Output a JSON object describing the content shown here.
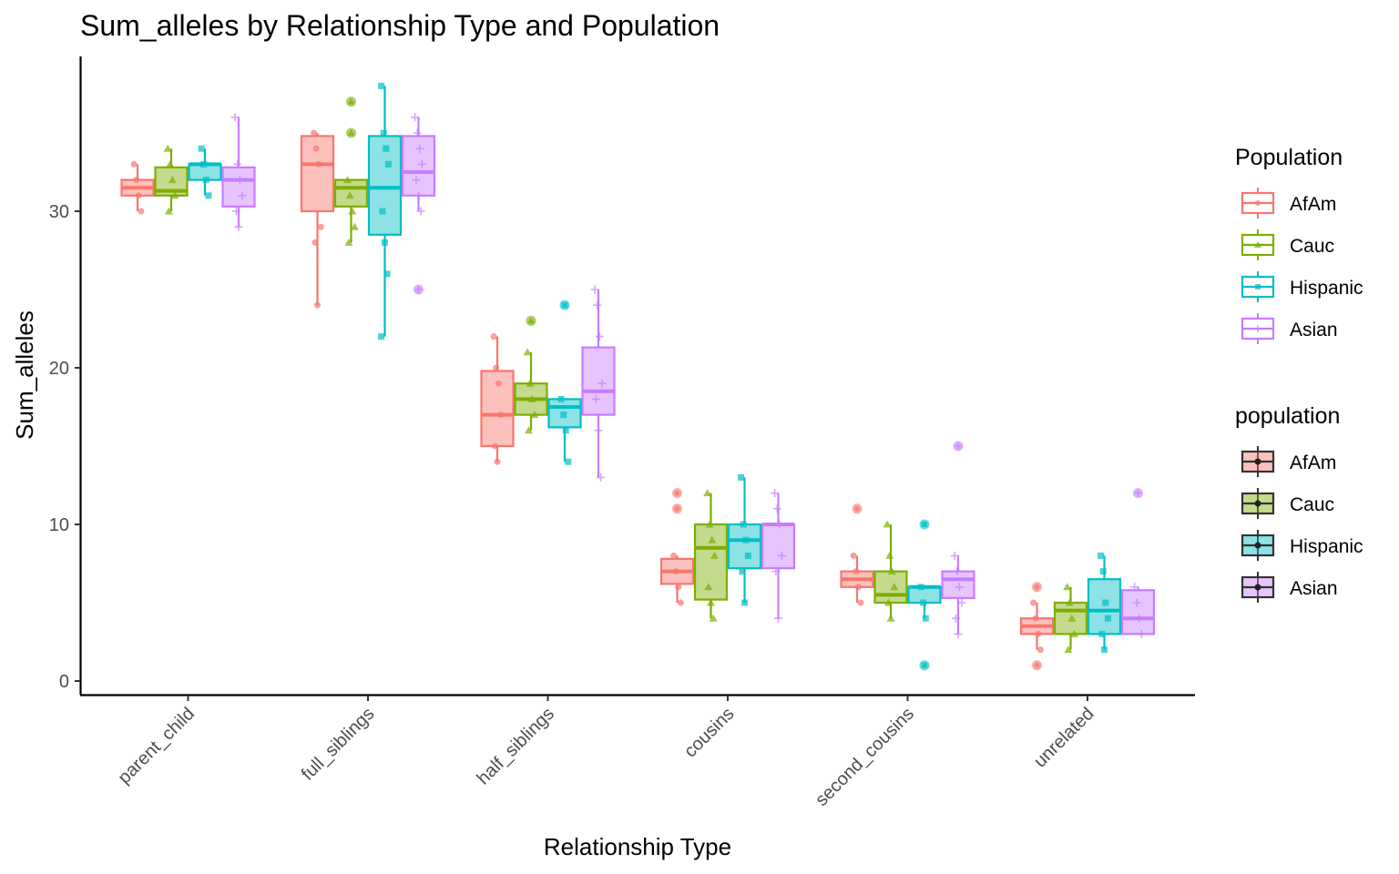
{
  "chart_data": {
    "type": "box",
    "title": "Sum_alleles by Relationship Type and Population",
    "xlabel": "Relationship Type",
    "ylabel": "Sum_alleles",
    "ylim": [
      -0.8,
      39.8
    ],
    "yticks": [
      0,
      10,
      20,
      30
    ],
    "ytick_labels": [
      "0",
      "10",
      "20",
      "30"
    ],
    "grid": false,
    "categories": [
      "parent_child",
      "full_siblings",
      "half_siblings",
      "cousins",
      "second_cousins",
      "unrelated"
    ],
    "populations": [
      "AfAm",
      "Cauc",
      "Hispanic",
      "Asian"
    ],
    "colors": {
      "AfAm": "#F8766D",
      "Cauc": "#7CAE00",
      "Hispanic": "#00BFC4",
      "Asian": "#C77CFF"
    },
    "boxes": {
      "parent_child": [
        {
          "pop": "AfAm",
          "q1": 31,
          "median": 31.5,
          "q3": 32,
          "lo": 30,
          "hi": 33,
          "points": [
            33,
            32,
            31,
            30
          ],
          "outliers": []
        },
        {
          "pop": "Cauc",
          "q1": 31,
          "median": 31.3,
          "q3": 32.8,
          "lo": 30,
          "hi": 34,
          "points": [
            34,
            33,
            32,
            31,
            30
          ],
          "outliers": []
        },
        {
          "pop": "Hispanic",
          "q1": 32,
          "median": 33,
          "q3": 33,
          "lo": 31,
          "hi": 34,
          "points": [
            34,
            33,
            32,
            31
          ],
          "outliers": []
        },
        {
          "pop": "Asian",
          "q1": 30.3,
          "median": 32,
          "q3": 32.8,
          "lo": 29,
          "hi": 36,
          "points": [
            36,
            33,
            32,
            31,
            30,
            29
          ],
          "outliers": []
        }
      ],
      "full_siblings": [
        {
          "pop": "AfAm",
          "q1": 30,
          "median": 33,
          "q3": 34.8,
          "lo": 24,
          "hi": 35,
          "points": [
            35,
            34,
            33,
            29,
            28,
            24
          ],
          "outliers": []
        },
        {
          "pop": "Cauc",
          "q1": 30.3,
          "median": 31.5,
          "q3": 32,
          "lo": 28,
          "hi": 32,
          "points": [
            32,
            31,
            30,
            29,
            28
          ],
          "outliers": [
            37,
            35
          ]
        },
        {
          "pop": "Hispanic",
          "q1": 28.5,
          "median": 31.5,
          "q3": 34.8,
          "lo": 22,
          "hi": 38,
          "points": [
            38,
            35,
            34,
            33,
            30,
            28,
            26,
            22
          ],
          "outliers": []
        },
        {
          "pop": "Asian",
          "q1": 31,
          "median": 32.5,
          "q3": 34.8,
          "lo": 30,
          "hi": 36,
          "points": [
            36,
            35,
            34,
            33,
            32,
            31,
            30
          ],
          "outliers": [
            25
          ]
        }
      ],
      "half_siblings": [
        {
          "pop": "AfAm",
          "q1": 15,
          "median": 17,
          "q3": 19.8,
          "lo": 14,
          "hi": 22,
          "points": [
            22,
            20,
            19,
            17,
            15,
            14
          ],
          "outliers": []
        },
        {
          "pop": "Cauc",
          "q1": 17,
          "median": 18,
          "q3": 19,
          "lo": 16,
          "hi": 21,
          "points": [
            21,
            19,
            18,
            17,
            16
          ],
          "outliers": [
            23
          ]
        },
        {
          "pop": "Hispanic",
          "q1": 16.2,
          "median": 17.5,
          "q3": 18,
          "lo": 14,
          "hi": 18,
          "points": [
            18,
            17,
            16,
            14
          ],
          "outliers": [
            24
          ]
        },
        {
          "pop": "Asian",
          "q1": 17,
          "median": 18.5,
          "q3": 21.3,
          "lo": 13,
          "hi": 25,
          "points": [
            25,
            24,
            22,
            19,
            18,
            16,
            13
          ],
          "outliers": []
        }
      ],
      "cousins": [
        {
          "pop": "AfAm",
          "q1": 6.2,
          "median": 7,
          "q3": 7.8,
          "lo": 5,
          "hi": 8,
          "points": [
            8,
            7,
            6,
            5
          ],
          "outliers": [
            12,
            11
          ]
        },
        {
          "pop": "Cauc",
          "q1": 5.2,
          "median": 8.5,
          "q3": 10,
          "lo": 4,
          "hi": 12,
          "points": [
            12,
            10,
            9,
            8,
            6,
            5,
            4
          ],
          "outliers": []
        },
        {
          "pop": "Hispanic",
          "q1": 7.2,
          "median": 9,
          "q3": 10,
          "lo": 5,
          "hi": 13,
          "points": [
            13,
            10,
            9,
            8,
            7,
            5
          ],
          "outliers": []
        },
        {
          "pop": "Asian",
          "q1": 7.2,
          "median": 10,
          "q3": 10,
          "lo": 4,
          "hi": 12,
          "points": [
            12,
            11,
            10,
            8,
            7,
            4
          ],
          "outliers": []
        }
      ],
      "second_cousins": [
        {
          "pop": "AfAm",
          "q1": 6,
          "median": 6.5,
          "q3": 7,
          "lo": 5,
          "hi": 8,
          "points": [
            8,
            7,
            6,
            5
          ],
          "outliers": [
            11
          ]
        },
        {
          "pop": "Cauc",
          "q1": 5,
          "median": 5.5,
          "q3": 7,
          "lo": 4,
          "hi": 10,
          "points": [
            10,
            8,
            7,
            6,
            5,
            4
          ],
          "outliers": []
        },
        {
          "pop": "Hispanic",
          "q1": 5,
          "median": 6,
          "q3": 6,
          "lo": 4,
          "hi": 6,
          "points": [
            6,
            5,
            4
          ],
          "outliers": [
            10,
            1
          ]
        },
        {
          "pop": "Asian",
          "q1": 5.3,
          "median": 6.5,
          "q3": 7,
          "lo": 3,
          "hi": 8,
          "points": [
            8,
            7,
            6,
            5,
            4,
            3
          ],
          "outliers": [
            15
          ]
        }
      ],
      "unrelated": [
        {
          "pop": "AfAm",
          "q1": 3,
          "median": 3.5,
          "q3": 4,
          "lo": 2,
          "hi": 5,
          "points": [
            5,
            4,
            3,
            2
          ],
          "outliers": [
            6,
            1
          ]
        },
        {
          "pop": "Cauc",
          "q1": 3,
          "median": 4.5,
          "q3": 5,
          "lo": 2,
          "hi": 6,
          "points": [
            6,
            5,
            4,
            3,
            2
          ],
          "outliers": []
        },
        {
          "pop": "Hispanic",
          "q1": 3,
          "median": 4.5,
          "q3": 6.5,
          "lo": 2,
          "hi": 8,
          "points": [
            8,
            7,
            5,
            4,
            3,
            2
          ],
          "outliers": []
        },
        {
          "pop": "Asian",
          "q1": 3,
          "median": 4,
          "q3": 5.8,
          "lo": 3,
          "hi": 6,
          "points": [
            6,
            5,
            4,
            3
          ],
          "outliers": [
            12
          ]
        }
      ]
    },
    "legends": [
      {
        "title": "Population",
        "style": "colored-outline",
        "entries": [
          "AfAm",
          "Cauc",
          "Hispanic",
          "Asian"
        ]
      },
      {
        "title": "population",
        "style": "filled-dark-outline",
        "entries": [
          "AfAm",
          "Cauc",
          "Hispanic",
          "Asian"
        ]
      }
    ],
    "legend_position": "right"
  }
}
